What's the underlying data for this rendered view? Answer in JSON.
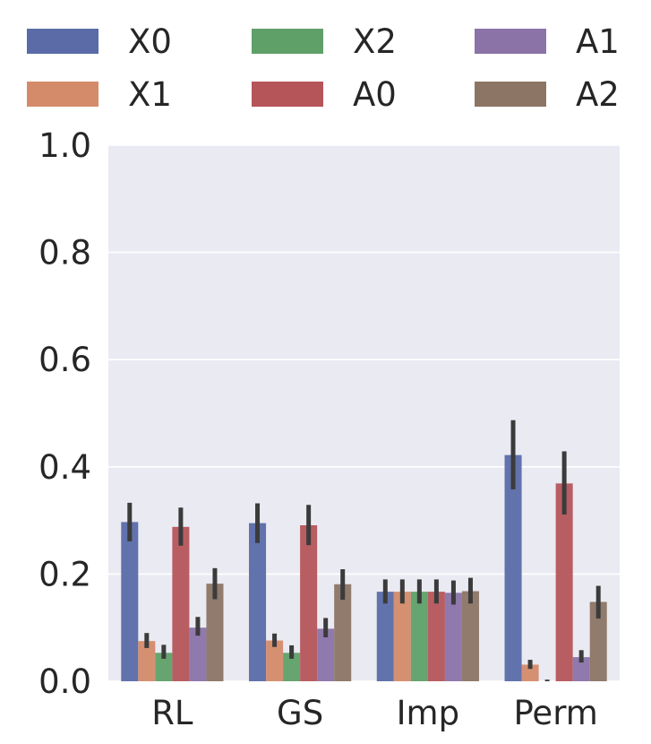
{
  "chart_data": {
    "type": "bar",
    "title": "",
    "xlabel": "",
    "ylabel": "",
    "categories": [
      "RL",
      "GS",
      "Imp",
      "Perm"
    ],
    "ylim": [
      0.0,
      1.0
    ],
    "yticks": [
      "0.0",
      "0.2",
      "0.4",
      "0.6",
      "0.8",
      "1.0"
    ],
    "grid": true,
    "legend_position": "top",
    "series": [
      {
        "name": "X0",
        "color": "#5a6ba8",
        "values": [
          0.297,
          0.295,
          0.167,
          0.422
        ],
        "err_low": [
          0.261,
          0.258,
          0.145,
          0.358
        ],
        "err_high": [
          0.333,
          0.332,
          0.19,
          0.487
        ]
      },
      {
        "name": "X1",
        "color": "#d48b6a",
        "values": [
          0.075,
          0.076,
          0.167,
          0.031
        ],
        "err_low": [
          0.062,
          0.064,
          0.145,
          0.023
        ],
        "err_high": [
          0.09,
          0.089,
          0.19,
          0.04
        ]
      },
      {
        "name": "X2",
        "color": "#5fa068",
        "values": [
          0.053,
          0.053,
          0.167,
          0.0
        ],
        "err_low": [
          0.042,
          0.042,
          0.145,
          0.0
        ],
        "err_high": [
          0.068,
          0.067,
          0.19,
          0.003
        ]
      },
      {
        "name": "A0",
        "color": "#b5555a",
        "values": [
          0.288,
          0.291,
          0.167,
          0.369
        ],
        "err_low": [
          0.253,
          0.254,
          0.145,
          0.311
        ],
        "err_high": [
          0.324,
          0.329,
          0.19,
          0.429
        ]
      },
      {
        "name": "A1",
        "color": "#8b73a8",
        "values": [
          0.1,
          0.098,
          0.165,
          0.045
        ],
        "err_low": [
          0.085,
          0.082,
          0.143,
          0.035
        ],
        "err_high": [
          0.12,
          0.118,
          0.188,
          0.058
        ]
      },
      {
        "name": "A2",
        "color": "#8c7565",
        "values": [
          0.182,
          0.181,
          0.168,
          0.148
        ],
        "err_low": [
          0.153,
          0.152,
          0.145,
          0.117
        ],
        "err_high": [
          0.211,
          0.209,
          0.193,
          0.178
        ]
      }
    ]
  }
}
